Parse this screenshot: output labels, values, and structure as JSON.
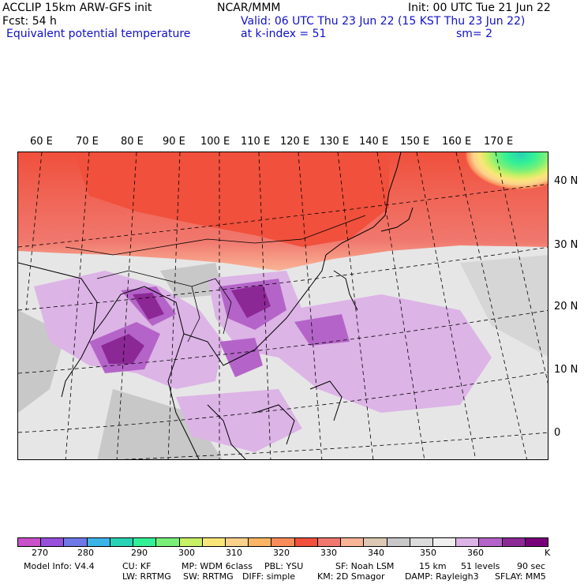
{
  "header": {
    "model": "ACCLIP 15km ARW-GFS init",
    "fcst": "Fcst:   54 h",
    "center": "NCAR/MMM",
    "init": "Init: 00 UTC Tue 21 Jun 22",
    "valid": "Valid: 06 UTC Thu 23 Jun 22 (15 KST Thu 23 Jun 22)",
    "field": "Equivalent potential temperature",
    "level": "at k-index =  51",
    "smooth": "sm= 2"
  },
  "map": {
    "lon_labels": [
      "60 E",
      "70 E",
      "80 E",
      "90 E",
      "100 E",
      "110 E",
      "120 E",
      "130 E",
      "140 E",
      "150 E",
      "160 E",
      "170 E"
    ],
    "lat_labels": [
      "40 N",
      "30 N",
      "20 N",
      "10 N",
      "0"
    ]
  },
  "colorbar": {
    "colors": [
      "#c850c8",
      "#9650dc",
      "#6e78e6",
      "#3cb4e6",
      "#28d2b4",
      "#32f096",
      "#78f078",
      "#c8f064",
      "#fae678",
      "#fad28c",
      "#fab464",
      "#fa8c5a",
      "#f0503c",
      "#f0786e",
      "#fab496",
      "#dcc8b4",
      "#c8c8c8",
      "#dcdcdc",
      "#f0f0f0",
      "#dcb4e6",
      "#b464c8",
      "#8c2896",
      "#780078"
    ],
    "tick_labels": [
      "270",
      "280",
      "290",
      "300",
      "310",
      "320",
      "330",
      "340",
      "350",
      "360"
    ],
    "unit": "K"
  },
  "footer": {
    "line1": [
      "Model Info: V4.4",
      "CU: KF",
      "MP: WDM 6class",
      "PBL: YSU",
      "SF: Noah LSM",
      "15 km",
      "51 levels",
      "90 sec"
    ],
    "line2": [
      "LW: RRTMG",
      "SW: RRTMG",
      "DIFF: simple",
      "KM: 2D Smagor",
      "DAMP: Rayleigh3",
      "SFLAY: MM5"
    ]
  }
}
